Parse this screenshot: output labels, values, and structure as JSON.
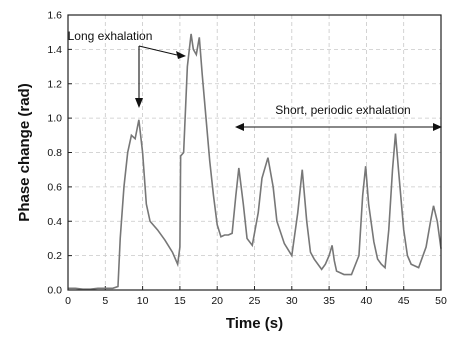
{
  "chart_data": {
    "type": "line",
    "title": "",
    "xlabel": "Time (s)",
    "ylabel": "Phase change (rad)",
    "xlim": [
      0,
      50
    ],
    "ylim": [
      0,
      1.6
    ],
    "x_ticks": [
      0,
      5,
      10,
      15,
      20,
      25,
      30,
      35,
      40,
      45,
      50
    ],
    "y_ticks": [
      "0.0",
      "0.2",
      "0.4",
      "0.6",
      "0.8",
      "1.0",
      "1.2",
      "1.4",
      "1.6"
    ],
    "grid": true,
    "line_color": "#777777",
    "series": [
      {
        "x": [
          0,
          1,
          2,
          3,
          4,
          5,
          6,
          6.7,
          7,
          7.5,
          8,
          8.5,
          9,
          9.5,
          10,
          10.5,
          11,
          12,
          13,
          14,
          14.7,
          15,
          15.1,
          15.5,
          15.8,
          16,
          16.5,
          16.8,
          17.2,
          17.6,
          18,
          18.5,
          19,
          19.5,
          20,
          20.5,
          21,
          21.5,
          22,
          22.5,
          22.9,
          23.5,
          24,
          24.7,
          25.5,
          26,
          26.8,
          27.5,
          28,
          29,
          30,
          30.8,
          31.4,
          32,
          32.5,
          33,
          34,
          34.5,
          35,
          35.4,
          35.7,
          36,
          37,
          38,
          39,
          39.5,
          39.9,
          40.3,
          41,
          41.5,
          42,
          42.5,
          43,
          43.5,
          43.9,
          44.3,
          45,
          45.5,
          46,
          47,
          48,
          48.6,
          49,
          49.5,
          50
        ],
        "y": [
          0.01,
          0.01,
          0.005,
          0.005,
          0.01,
          0.01,
          0.01,
          0.02,
          0.3,
          0.6,
          0.8,
          0.9,
          0.88,
          0.99,
          0.8,
          0.5,
          0.4,
          0.35,
          0.29,
          0.22,
          0.15,
          0.25,
          0.78,
          0.8,
          1.1,
          1.3,
          1.49,
          1.4,
          1.37,
          1.47,
          1.25,
          1.0,
          0.75,
          0.55,
          0.38,
          0.31,
          0.32,
          0.32,
          0.33,
          0.55,
          0.71,
          0.5,
          0.3,
          0.26,
          0.45,
          0.65,
          0.77,
          0.6,
          0.4,
          0.27,
          0.2,
          0.45,
          0.7,
          0.4,
          0.22,
          0.18,
          0.12,
          0.15,
          0.2,
          0.26,
          0.17,
          0.11,
          0.09,
          0.09,
          0.2,
          0.55,
          0.72,
          0.5,
          0.28,
          0.18,
          0.15,
          0.13,
          0.35,
          0.7,
          0.91,
          0.7,
          0.35,
          0.2,
          0.15,
          0.13,
          0.25,
          0.4,
          0.49,
          0.4,
          0.24
        ]
      }
    ],
    "annotations": [
      {
        "text": "Long exhalation"
      },
      {
        "text": "Short, periodic exhalation"
      }
    ]
  }
}
